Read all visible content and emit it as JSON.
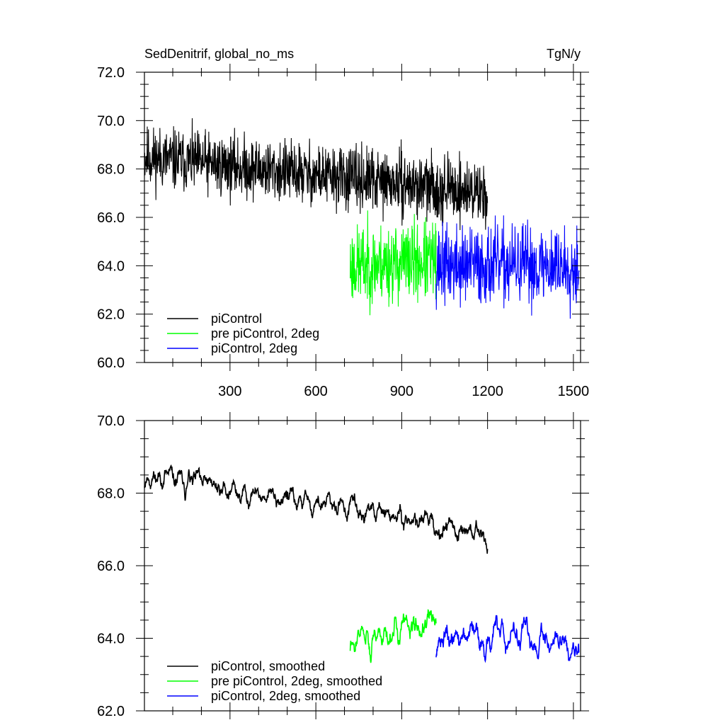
{
  "title_left": "SedDenitrif, global_no_ms",
  "title_right": "TgN/y",
  "colors": {
    "black": "#000000",
    "green": "#00ff00",
    "blue": "#0000ff"
  },
  "chart_data": [
    {
      "type": "line",
      "title": "SedDenitrif, global_no_ms",
      "units": "TgN/y",
      "xlim": [
        1,
        1525
      ],
      "ylim": [
        60.0,
        72.0
      ],
      "xticks": [
        300,
        600,
        900,
        1200,
        1500
      ],
      "yticks": [
        "60.0",
        "62.0",
        "64.0",
        "66.0",
        "68.0",
        "70.0",
        "72.0"
      ],
      "legend_position": "bottom-left",
      "series": [
        {
          "name": "piControl",
          "color": "#000000",
          "x_start": 1,
          "x_end": 1200,
          "base_start": 68.5,
          "base_end": 67.0,
          "noise": 1.1,
          "seed": 11
        },
        {
          "name": "pre piControl, 2deg",
          "color": "#00ff00",
          "x_start": 720,
          "x_end": 1020,
          "base_start": 64.0,
          "base_end": 64.2,
          "noise": 1.4,
          "seed": 23
        },
        {
          "name": "piControl, 2deg",
          "color": "#0000ff",
          "x_start": 1020,
          "x_end": 1520,
          "base_start": 64.0,
          "base_end": 64.0,
          "noise": 1.4,
          "seed": 37
        }
      ]
    },
    {
      "type": "line",
      "xlim": [
        1,
        1525
      ],
      "ylim": [
        62.0,
        70.0
      ],
      "yticks": [
        "62.0",
        "64.0",
        "66.0",
        "68.0",
        "70.0"
      ],
      "legend_position": "bottom-left",
      "series": [
        {
          "name": "piControl, smoothed",
          "color": "#000000",
          "x_start": 1,
          "x_end": 1200,
          "base_start": 68.5,
          "base_end": 66.9,
          "noise": 0.35,
          "seed": 11
        },
        {
          "name": "pre piControl, 2deg, smoothed",
          "color": "#00ff00",
          "x_start": 720,
          "x_end": 1020,
          "base_start": 64.0,
          "base_end": 64.4,
          "noise": 0.45,
          "seed": 23
        },
        {
          "name": "piControl, 2deg, smoothed",
          "color": "#0000ff",
          "x_start": 1020,
          "x_end": 1520,
          "base_start": 64.0,
          "base_end": 64.0,
          "noise": 0.45,
          "seed": 37
        }
      ]
    }
  ]
}
